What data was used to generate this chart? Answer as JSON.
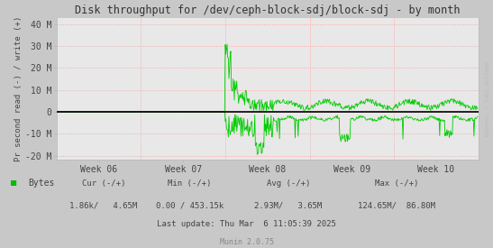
{
  "title": "Disk throughput for /dev/ceph-block-sdj/block-sdj - by month",
  "ylabel": "Pr second read (-) / write (+)",
  "xlabel_ticks": [
    "Week 06",
    "Week 07",
    "Week 08",
    "Week 09",
    "Week 10"
  ],
  "ytick_labels": [
    "-20 M",
    "-10 M",
    "0",
    "10 M",
    "20 M",
    "30 M",
    "40 M"
  ],
  "ytick_values": [
    -20000000,
    -10000000,
    0,
    10000000,
    20000000,
    30000000,
    40000000
  ],
  "ylim": [
    -22000000,
    43000000
  ],
  "xlim": [
    0,
    700
  ],
  "outer_bg": "#c8c8c8",
  "plot_bg": "#e8e8e8",
  "grid_color": "#ff9999",
  "line_color": "#00cc00",
  "zero_line_color": "#000000",
  "legend_text": "Bytes",
  "legend_color": "#00bb00",
  "right_label": "RRDTOOL / TOBI OETIKER",
  "last_update": "Last update: Thu Mar  6 11:05:39 2025",
  "munin_version": "Munin 2.0.75",
  "num_points": 700,
  "spike_start": 280,
  "spike_end": 360
}
